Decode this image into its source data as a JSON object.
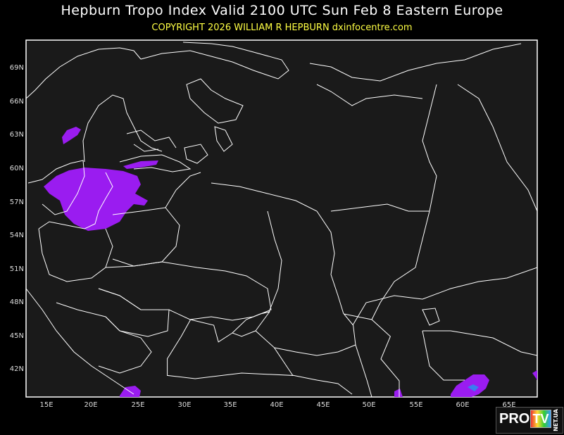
{
  "header": {
    "title": "Hepburn Tropo Index Valid 2100 UTC Sun Feb 8 Eastern Europe",
    "subtitle": "COPYRIGHT 2026   WILLIAM R HEPBURN   dxinfocentre.com"
  },
  "map": {
    "region": "Eastern Europe",
    "lat_labels": [
      "69N",
      "66N",
      "63N",
      "60N",
      "57N",
      "54N",
      "51N",
      "48N",
      "45N",
      "42N"
    ],
    "lon_labels": [
      "15E",
      "20E",
      "25E",
      "30E",
      "35E",
      "40E",
      "45E",
      "50E",
      "55E",
      "60E",
      "65E"
    ],
    "colors": {
      "background": "#1a1a1a",
      "outline": "#ffffff",
      "index_purple": "#9a1cf0",
      "index_blue": "#3a7cf0",
      "title": "#ffffff",
      "subtitle": "#ffff44"
    }
  },
  "watermark": {
    "pro": "PRO",
    "tv": "TV",
    "net": "NET.UA"
  }
}
